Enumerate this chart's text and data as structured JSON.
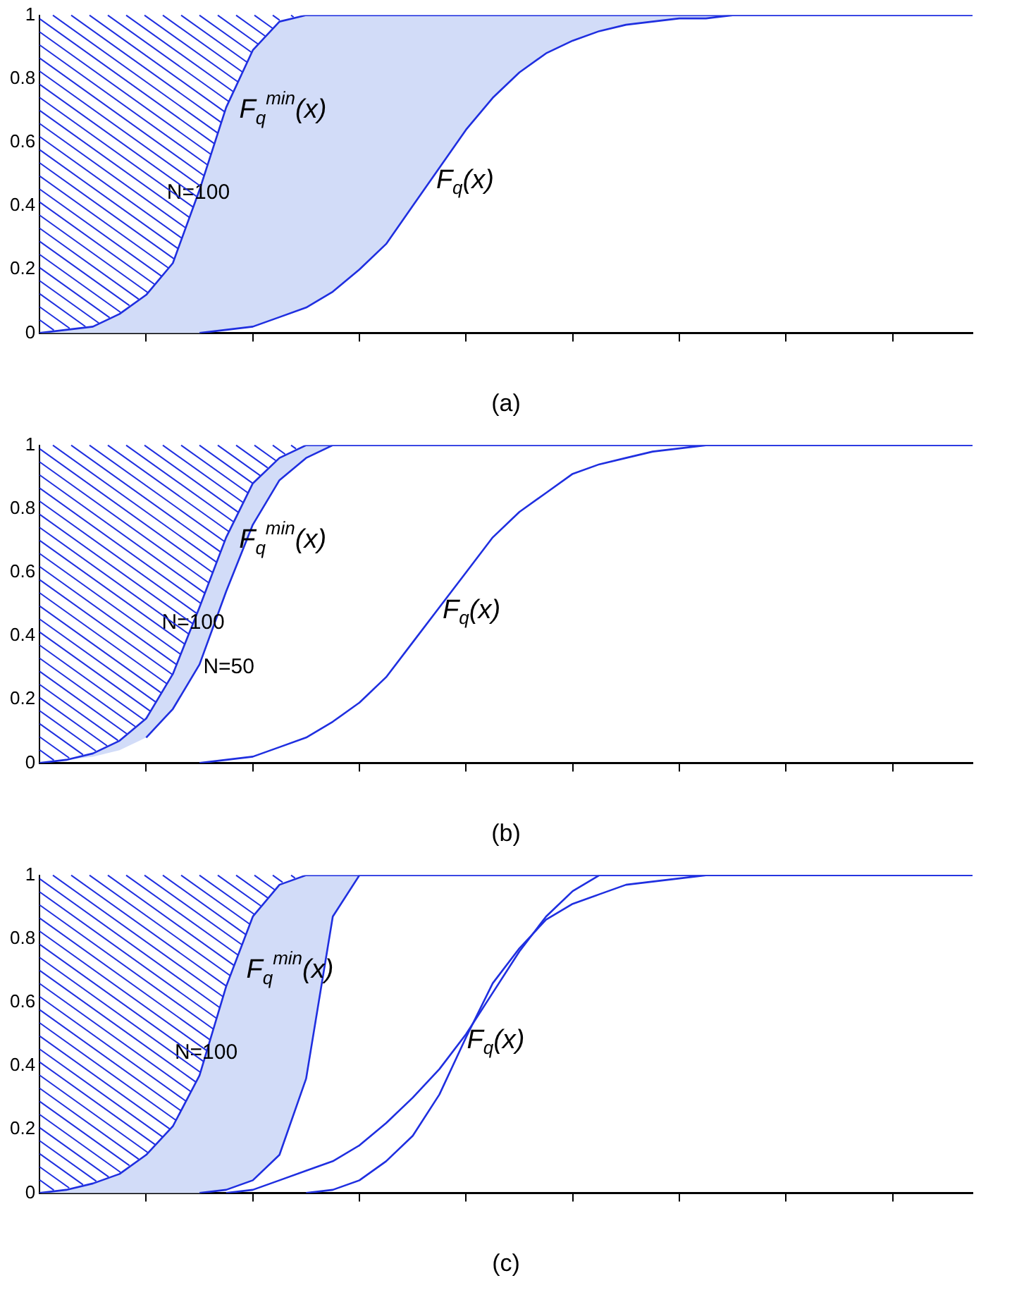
{
  "chart_data": [
    {
      "type": "line",
      "xlabel": "(a)",
      "categories": [
        null,
        null,
        null,
        null,
        null,
        null,
        null,
        null,
        null,
        null,
        null,
        null,
        null,
        null,
        null,
        null,
        null,
        null,
        null,
        null,
        null,
        null,
        null,
        null,
        null,
        null,
        null,
        null,
        null,
        null,
        null,
        null,
        null,
        null,
        null,
        null
      ],
      "ylim": [
        0,
        1
      ],
      "yticks": [
        0,
        0.2,
        0.4,
        0.6,
        0.8,
        1
      ],
      "grid": false,
      "legend": false,
      "marker": "none",
      "line_style": "solid",
      "series": [
        {
          "name": "N=100",
          "color": "#1f2fe0",
          "values": [
            0,
            0.01,
            0.02,
            0.06,
            0.12,
            0.22,
            0.45,
            0.71,
            0.89,
            0.98,
            1,
            1,
            1,
            1,
            1,
            1,
            1,
            1,
            1,
            1,
            1,
            1,
            1,
            1,
            1,
            1,
            1,
            1,
            1,
            1,
            1,
            1,
            1,
            1,
            1,
            1
          ],
          "upper": [
            0,
            0.01,
            0.02,
            0.06,
            0.12,
            0.22,
            0.45,
            0.71,
            0.89,
            0.98,
            1,
            1,
            1,
            1,
            1,
            1,
            1,
            1,
            1,
            1,
            1,
            1,
            1,
            1,
            1,
            1,
            1,
            1,
            1,
            1,
            1,
            1,
            1,
            1,
            1,
            1
          ],
          "lower": [
            0,
            0,
            0,
            0,
            0,
            0,
            0,
            0.01,
            0.02,
            0.05,
            0.08,
            0.13,
            0.2,
            0.28,
            0.4,
            0.52,
            0.64,
            0.74,
            0.82,
            0.88,
            0.92,
            0.95,
            0.97,
            0.98,
            0.99,
            0.99,
            1,
            1,
            1,
            1,
            1,
            1,
            1,
            1,
            1,
            1
          ]
        },
        {
          "name": "F$_{q}$(x)",
          "color": "#1f2fe0",
          "values": [
            null,
            null,
            null,
            null,
            null,
            null,
            0,
            0.01,
            0.02,
            0.05,
            0.08,
            0.13,
            0.2,
            0.28,
            0.4,
            0.52,
            0.64,
            0.74,
            0.82,
            0.88,
            0.92,
            0.95,
            0.97,
            0.98,
            0.99,
            0.99,
            1,
            1,
            1,
            1,
            1,
            1,
            1,
            1,
            1,
            1
          ]
        }
      ],
      "annotations": [
        "F$_{q}$$^{min}$(x)"
      ]
    },
    {
      "type": "line",
      "xlabel": "(b)",
      "categories": [
        null,
        null,
        null,
        null,
        null,
        null,
        null,
        null,
        null,
        null,
        null,
        null,
        null,
        null,
        null,
        null,
        null,
        null,
        null,
        null,
        null,
        null,
        null,
        null,
        null,
        null,
        null,
        null,
        null,
        null,
        null,
        null,
        null,
        null,
        null,
        null
      ],
      "ylim": [
        0,
        1
      ],
      "yticks": [
        0,
        0.2,
        0.4,
        0.6,
        0.8,
        1
      ],
      "grid": false,
      "legend": false,
      "marker": "none",
      "line_style": "solid",
      "series": [
        {
          "name": "N=100",
          "color": "#1f2fe0",
          "values": [
            0,
            0.01,
            0.03,
            0.07,
            0.14,
            0.28,
            0.49,
            0.71,
            0.88,
            0.96,
            1,
            1,
            1,
            1,
            1,
            1,
            1,
            1,
            1,
            1,
            1,
            1,
            1,
            1,
            1,
            1,
            1,
            1,
            1,
            1,
            1,
            1,
            1,
            1,
            1,
            1
          ],
          "upper": [
            0,
            0.01,
            0.03,
            0.07,
            0.14,
            0.28,
            0.49,
            0.71,
            0.88,
            0.96,
            1,
            1,
            1,
            1,
            1,
            1,
            1,
            1,
            1,
            1,
            1,
            1,
            1,
            1,
            1,
            1,
            1,
            1,
            1,
            1,
            1,
            1,
            1,
            1,
            1,
            1
          ],
          "lower": [
            0,
            0.01,
            0.02,
            0.04,
            0.08,
            0.17,
            0.31,
            0.54,
            0.75,
            0.89,
            0.96,
            1,
            1,
            1,
            1,
            1,
            1,
            1,
            1,
            1,
            1,
            1,
            1,
            1,
            1,
            1,
            1,
            1,
            1,
            1,
            1,
            1,
            1,
            1,
            1,
            1
          ]
        },
        {
          "name": "N=50",
          "color": "#1f2fe0",
          "values": [
            null,
            null,
            null,
            null,
            0.08,
            0.17,
            0.31,
            0.54,
            0.75,
            0.89,
            0.96,
            1,
            1,
            1,
            1,
            1,
            1,
            1,
            1,
            1,
            1,
            1,
            1,
            1,
            1,
            1,
            1,
            1,
            1,
            1,
            1,
            1,
            1,
            1,
            1,
            1
          ]
        },
        {
          "name": "F$_{q}$(x)",
          "color": "#1f2fe0",
          "values": [
            null,
            null,
            null,
            null,
            null,
            null,
            0,
            0.01,
            0.02,
            0.05,
            0.08,
            0.13,
            0.19,
            0.27,
            0.38,
            0.49,
            0.6,
            0.71,
            0.79,
            0.85,
            0.91,
            0.94,
            0.96,
            0.98,
            0.99,
            1,
            1,
            1,
            1,
            1,
            1,
            1,
            1,
            1,
            1,
            1
          ]
        }
      ],
      "annotations": [
        "F$_{q}$$^{min}$(x)"
      ]
    },
    {
      "type": "line",
      "xlabel": "(c)",
      "categories": [
        null,
        null,
        null,
        null,
        null,
        null,
        null,
        null,
        null,
        null,
        null,
        null,
        null,
        null,
        null,
        null,
        null,
        null,
        null,
        null,
        null,
        null,
        null,
        null,
        null,
        null,
        null,
        null,
        null,
        null,
        null,
        null,
        null,
        null,
        null,
        null
      ],
      "ylim": [
        0,
        1
      ],
      "yticks": [
        0,
        0.2,
        0.4,
        0.6,
        0.8,
        1
      ],
      "grid": false,
      "legend": false,
      "marker": "none",
      "line_style": "solid",
      "series": [
        {
          "name": "N=100",
          "color": "#1f2fe0",
          "values": [
            0,
            0.01,
            0.03,
            0.06,
            0.12,
            0.21,
            0.37,
            0.65,
            0.87,
            0.97,
            1,
            1,
            1,
            1,
            1,
            1,
            1,
            1,
            1,
            1,
            1,
            1,
            1,
            1,
            1,
            1,
            1,
            1,
            1,
            1,
            1,
            1,
            1,
            1,
            1,
            1
          ],
          "upper": [
            0,
            0.01,
            0.03,
            0.06,
            0.12,
            0.21,
            0.37,
            0.65,
            0.87,
            0.97,
            1,
            1,
            1,
            1,
            1,
            1,
            1,
            1,
            1,
            1,
            1,
            1,
            1,
            1,
            1,
            1,
            1,
            1,
            1,
            1,
            1,
            1,
            1,
            1,
            1,
            1
          ],
          "lower": [
            0,
            0,
            0,
            0,
            0,
            0,
            0,
            0.01,
            0.04,
            0.12,
            0.36,
            0.87,
            1,
            1,
            1,
            1,
            1,
            1,
            1,
            1,
            1,
            1,
            1,
            1,
            1,
            1,
            1,
            1,
            1,
            1,
            1,
            1,
            1,
            1,
            1,
            1
          ]
        },
        {
          "color": "#1f2fe0",
          "values": [
            null,
            null,
            null,
            null,
            null,
            null,
            0,
            0.01,
            0.04,
            0.12,
            0.36,
            0.87,
            1,
            1,
            1,
            1,
            1,
            1,
            1,
            1,
            1,
            1,
            1,
            1,
            1,
            1,
            1,
            1,
            1,
            1,
            1,
            1,
            1,
            1,
            1,
            1
          ]
        },
        {
          "name": "F$_{q}$(x)",
          "color": "#1f2fe0",
          "values": [
            null,
            null,
            null,
            null,
            null,
            null,
            null,
            0,
            0.01,
            0.04,
            0.07,
            0.1,
            0.15,
            0.22,
            0.3,
            0.39,
            0.5,
            0.63,
            0.76,
            0.87,
            0.95,
            1,
            1,
            1,
            1,
            1,
            1,
            1,
            1,
            1,
            1,
            1,
            1,
            1,
            1,
            1
          ]
        },
        {
          "color": "#1f2fe0",
          "values": [
            null,
            null,
            null,
            null,
            null,
            null,
            null,
            null,
            null,
            null,
            0,
            0.01,
            0.04,
            0.1,
            0.18,
            0.31,
            0.49,
            0.66,
            0.77,
            0.86,
            0.91,
            0.94,
            0.97,
            0.98,
            0.99,
            1,
            1,
            1,
            1,
            1,
            1,
            1,
            1,
            1,
            1,
            1
          ]
        }
      ],
      "annotations": [
        "F$_{q}$$^{min}$(x)"
      ]
    }
  ]
}
